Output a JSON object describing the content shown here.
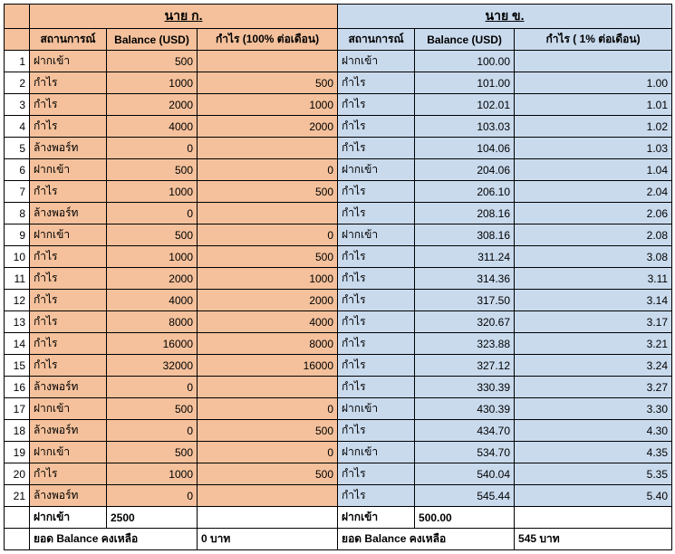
{
  "headers": {
    "personA": "นาย ก.",
    "personB": "นาย ข.",
    "scenario": "สถานการณ์",
    "balance": "Balance (USD)",
    "profitA": "กำไร (100% ต่อเดือน)",
    "profitB": "กำไร ( 1% ต่อเดือน)"
  },
  "colors": {
    "orange": "#f4c19c",
    "blue": "#c9daed",
    "border": "#000000",
    "text": "#000000",
    "bg": "#ffffff"
  },
  "rows": [
    {
      "n": "1",
      "sA": "ฝากเข้า",
      "bA": "500",
      "pA": "",
      "sB": "ฝากเข้า",
      "bB": "100.00",
      "pB": ""
    },
    {
      "n": "2",
      "sA": "กำไร",
      "bA": "1000",
      "pA": "500",
      "sB": "กำไร",
      "bB": "101.00",
      "pB": "1.00"
    },
    {
      "n": "3",
      "sA": "กำไร",
      "bA": "2000",
      "pA": "1000",
      "sB": "กำไร",
      "bB": "102.01",
      "pB": "1.01"
    },
    {
      "n": "4",
      "sA": "กำไร",
      "bA": "4000",
      "pA": "2000",
      "sB": "กำไร",
      "bB": "103.03",
      "pB": "1.02"
    },
    {
      "n": "5",
      "sA": "ล้างพอร์ท",
      "bA": "0",
      "pA": "",
      "sB": "กำไร",
      "bB": "104.06",
      "pB": "1.03"
    },
    {
      "n": "6",
      "sA": "ฝากเข้า",
      "bA": "500",
      "pA": "0",
      "sB": "ฝากเข้า",
      "bB": "204.06",
      "pB": "1.04"
    },
    {
      "n": "7",
      "sA": "กำไร",
      "bA": "1000",
      "pA": "500",
      "sB": "กำไร",
      "bB": "206.10",
      "pB": "2.04"
    },
    {
      "n": "8",
      "sA": "ล้างพอร์ท",
      "bA": "0",
      "pA": "",
      "sB": "กำไร",
      "bB": "208.16",
      "pB": "2.06"
    },
    {
      "n": "9",
      "sA": "ฝากเข้า",
      "bA": "500",
      "pA": "0",
      "sB": "ฝากเข้า",
      "bB": "308.16",
      "pB": "2.08"
    },
    {
      "n": "10",
      "sA": "กำไร",
      "bA": "1000",
      "pA": "500",
      "sB": "กำไร",
      "bB": "311.24",
      "pB": "3.08"
    },
    {
      "n": "11",
      "sA": "กำไร",
      "bA": "2000",
      "pA": "1000",
      "sB": "กำไร",
      "bB": "314.36",
      "pB": "3.11"
    },
    {
      "n": "12",
      "sA": "กำไร",
      "bA": "4000",
      "pA": "2000",
      "sB": "กำไร",
      "bB": "317.50",
      "pB": "3.14"
    },
    {
      "n": "13",
      "sA": "กำไร",
      "bA": "8000",
      "pA": "4000",
      "sB": "กำไร",
      "bB": "320.67",
      "pB": "3.17"
    },
    {
      "n": "14",
      "sA": "กำไร",
      "bA": "16000",
      "pA": "8000",
      "sB": "กำไร",
      "bB": "323.88",
      "pB": "3.21"
    },
    {
      "n": "15",
      "sA": "กำไร",
      "bA": "32000",
      "pA": "16000",
      "sB": "กำไร",
      "bB": "327.12",
      "pB": "3.24"
    },
    {
      "n": "16",
      "sA": "ล้างพอร์ท",
      "bA": "0",
      "pA": "",
      "sB": "กำไร",
      "bB": "330.39",
      "pB": "3.27"
    },
    {
      "n": "17",
      "sA": "ฝากเข้า",
      "bA": "500",
      "pA": "0",
      "sB": "ฝากเข้า",
      "bB": "430.39",
      "pB": "3.30"
    },
    {
      "n": "18",
      "sA": "ล้างพอร์ท",
      "bA": "0",
      "pA": "500",
      "sB": "กำไร",
      "bB": "434.70",
      "pB": "4.30"
    },
    {
      "n": "19",
      "sA": "ฝากเข้า",
      "bA": "500",
      "pA": "0",
      "sB": "ฝากเข้า",
      "bB": "534.70",
      "pB": "4.35"
    },
    {
      "n": "20",
      "sA": "กำไร",
      "bA": "1000",
      "pA": "500",
      "sB": "กำไร",
      "bB": "540.04",
      "pB": "5.35"
    },
    {
      "n": "21",
      "sA": "ล้างพอร์ท",
      "bA": "0",
      "pA": "",
      "sB": "กำไร",
      "bB": "545.44",
      "pB": "5.40"
    }
  ],
  "summary": {
    "depositLabel": "ฝากเข้า",
    "depositA": "2500",
    "depositB": "500.00",
    "balanceRemainLabel": "ยอด Balance คงเหลือ",
    "balanceRemainA": "0 บาท",
    "balanceRemainB": "545 บาท"
  }
}
